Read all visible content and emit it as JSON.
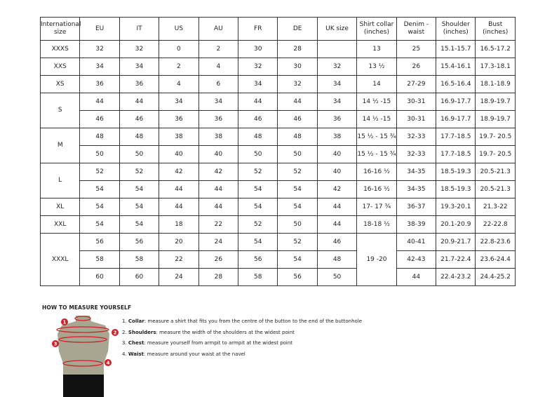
{
  "table": {
    "headers": [
      "International size",
      "EU",
      "IT",
      "US",
      "AU",
      "FR",
      "DE",
      "UK size",
      "Shirt collar (inches)",
      "Denim - waist",
      "Shoulder (inches)",
      "Bust (inches)"
    ],
    "groups": [
      {
        "size": "XXXS",
        "rows": [
          [
            "32",
            "32",
            "0",
            "2",
            "30",
            "28",
            "",
            "13",
            "25",
            "15.1-15.7",
            "16.5-17.2"
          ]
        ]
      },
      {
        "size": "XXS",
        "rows": [
          [
            "34",
            "34",
            "2",
            "4",
            "32",
            "30",
            "32",
            "13 ½",
            "26",
            "15.4-16.1",
            "17.3-18.1"
          ]
        ]
      },
      {
        "size": "XS",
        "rows": [
          [
            "36",
            "36",
            "4",
            "6",
            "34",
            "32",
            "34",
            "14",
            "27-29",
            "16.5-16.4",
            "18.1-18.9"
          ]
        ]
      },
      {
        "size": "S",
        "rows": [
          [
            "44",
            "44",
            "34",
            "34",
            "44",
            "44",
            "34",
            "14 ½ -15",
            "30-31",
            "16.9-17.7",
            "18.9-19.7"
          ],
          [
            "46",
            "46",
            "36",
            "36",
            "46",
            "46",
            "36",
            "14 ½ -15",
            "30-31",
            "16.9-17.7",
            "18.9-19.7"
          ]
        ]
      },
      {
        "size": "M",
        "rows": [
          [
            "48",
            "48",
            "38",
            "38",
            "48",
            "48",
            "38",
            "15 ½ - 15 ¾",
            "32-33",
            "17.7-18.5",
            "19.7- 20.5"
          ],
          [
            "50",
            "50",
            "40",
            "40",
            "50",
            "50",
            "40",
            "15 ½ - 15 ¾",
            "32-33",
            "17.7-18.5",
            "19.7- 20.5"
          ]
        ]
      },
      {
        "size": "L",
        "rows": [
          [
            "52",
            "52",
            "42",
            "42",
            "52",
            "52",
            "40",
            "16-16 ½",
            "34-35",
            "18.5-19.3",
            "20.5-21.3"
          ],
          [
            "54",
            "54",
            "44",
            "44",
            "54",
            "54",
            "42",
            "16-16 ½",
            "34-35",
            "18.5-19.3",
            "20.5-21.3"
          ]
        ]
      },
      {
        "size": "XL",
        "rows": [
          [
            "54",
            "54",
            "44",
            "44",
            "54",
            "54",
            "44",
            "17- 17 ¾",
            "36-37",
            "19.3-20.1",
            "21.3-22"
          ]
        ]
      },
      {
        "size": "XXL",
        "rows": [
          [
            "54",
            "54",
            "18",
            "22",
            "52",
            "50",
            "44",
            "18-18 ½",
            "38-39",
            "20.1-20.9",
            "22-22.8"
          ]
        ]
      },
      {
        "size": "XXXL",
        "collar": "19 -20",
        "rows": [
          [
            "56",
            "56",
            "20",
            "24",
            "54",
            "52",
            "46",
            "40-41",
            "20.9-21.7",
            "22.8-23.6"
          ],
          [
            "58",
            "58",
            "22",
            "26",
            "56",
            "54",
            "48",
            "42-43",
            "21.7-22.4",
            "23.6-24.4"
          ],
          [
            "60",
            "60",
            "24",
            "28",
            "58",
            "56",
            "50",
            "44",
            "22.4-23.2",
            "24.4-25.2"
          ]
        ]
      }
    ]
  },
  "guide": {
    "title": "HOW TO MEASURE YOURSELF",
    "steps": [
      {
        "num": "1.",
        "label": "Collar",
        "text": ": measure a shirt that fits you from the centre of the button to the end of the buttonhole"
      },
      {
        "num": "2.",
        "label": "Shoulders",
        "text": ": measure the width of the shoulders at the widest point"
      },
      {
        "num": "3.",
        "label": "Chest",
        "text": ": measure yourself from armpit to armpit at the widest point"
      },
      {
        "num": "4.",
        "label": "Waist",
        "text": ": measure around your waist at the navel"
      }
    ],
    "markers": [
      "1",
      "2",
      "3",
      "4"
    ],
    "colors": {
      "marker": "#d0202a",
      "torso": "#a8a690",
      "pants": "#111111"
    }
  }
}
